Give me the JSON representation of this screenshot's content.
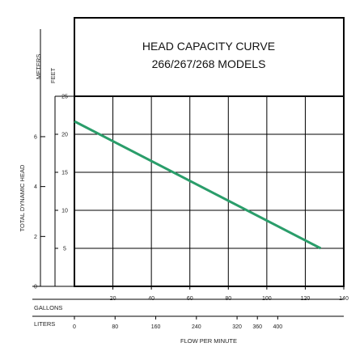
{
  "chart_data": {
    "type": "line",
    "title": "HEAD CAPACITY CURVE",
    "subtitle": "266/267/268 MODELS",
    "ylabel": "TOTAL DYNAMIC HEAD",
    "xlabel": "FLOW PER MINUTE",
    "y_units": {
      "feet": "FEET",
      "meters": "METERS"
    },
    "x_units": {
      "gallons": "GALLONS",
      "liters": "LITERS"
    },
    "y_feet_ticks": [
      "5",
      "10",
      "15",
      "20",
      "25"
    ],
    "y_feet_values": [
      5,
      10,
      15,
      20,
      25
    ],
    "y_meter_ticks": [
      "0",
      "2",
      "4",
      "6"
    ],
    "y_meter_values": [
      0,
      2,
      4,
      6
    ],
    "x_gallon_ticks": [
      "20",
      "40",
      "60",
      "80",
      "100",
      "120",
      "140"
    ],
    "x_gallon_values": [
      20,
      40,
      60,
      80,
      100,
      120,
      140
    ],
    "x_liter_ticks": [
      "0",
      "80",
      "160",
      "240",
      "320",
      "360",
      "400"
    ],
    "x_liter_values": [
      0,
      80,
      160,
      240,
      320,
      360,
      400
    ],
    "xlim": [
      0,
      140
    ],
    "ylim": [
      0,
      25
    ],
    "grid": true,
    "series": [
      {
        "x": [
          0,
          128
        ],
        "y": [
          21.7,
          5.0
        ],
        "color": "#2a9d6a"
      }
    ]
  }
}
